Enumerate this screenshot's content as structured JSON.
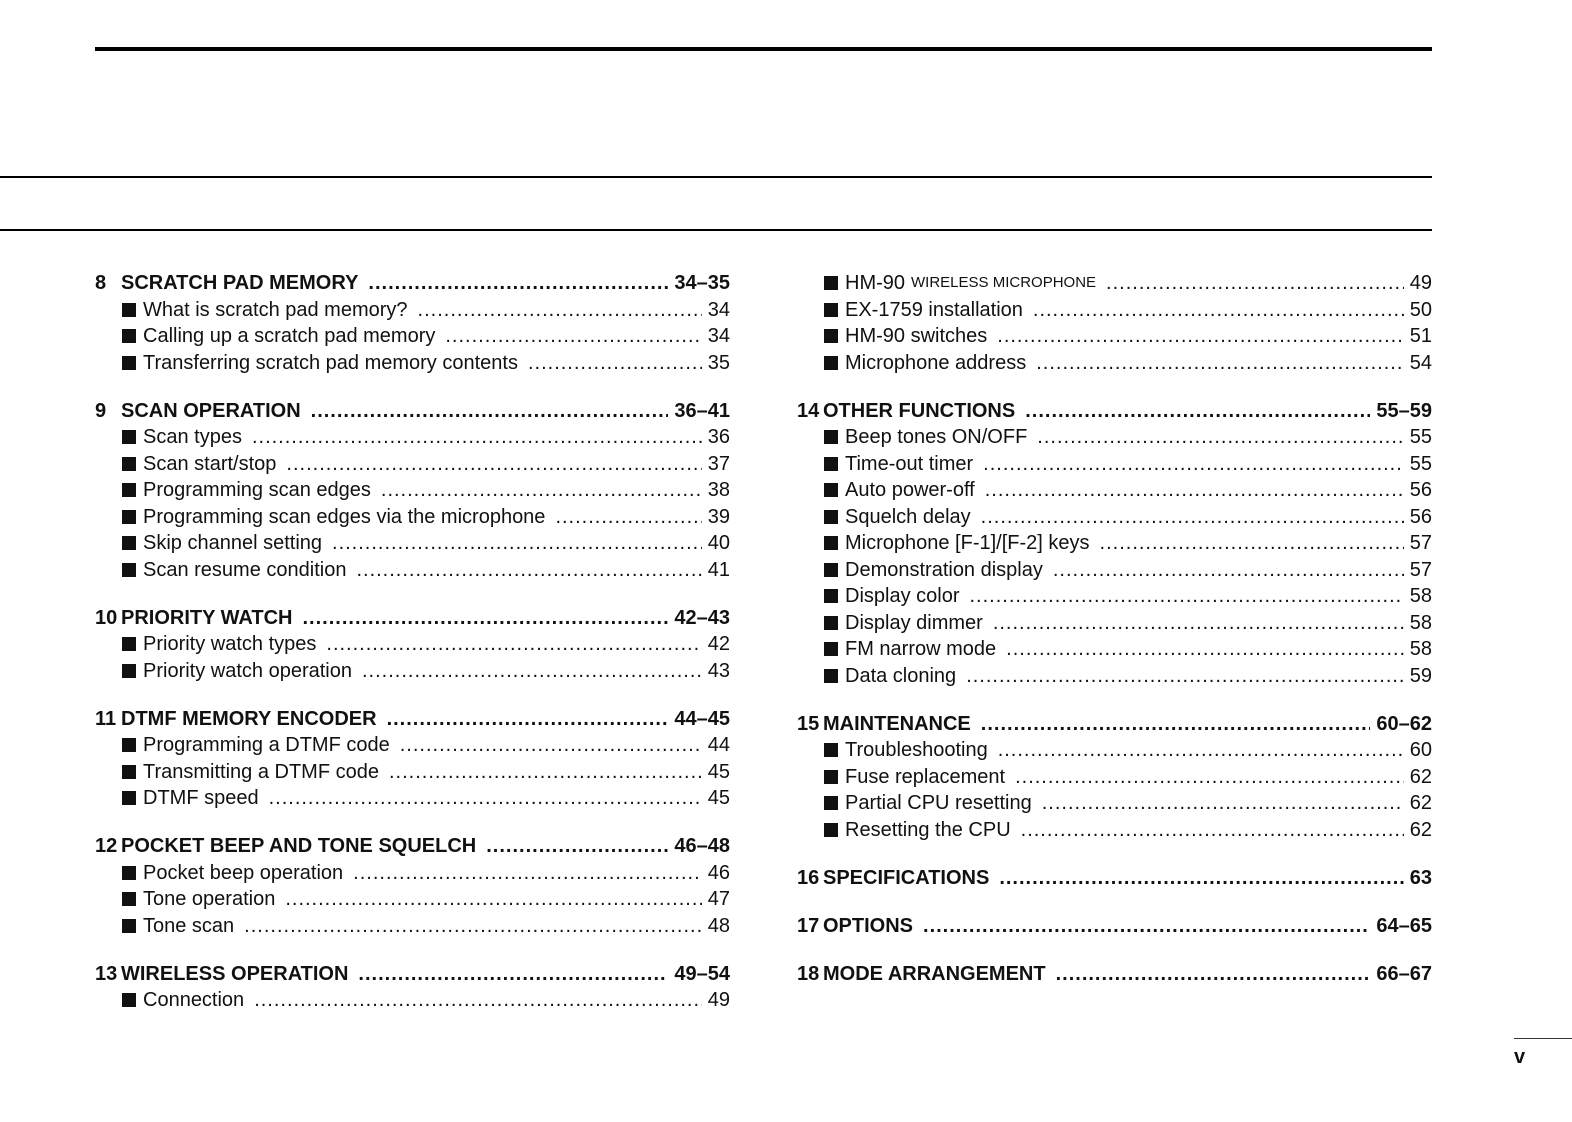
{
  "page_number": "v",
  "columns": [
    [
      {
        "type": "heading",
        "num": "8",
        "title": "SCRATCH PAD MEMORY",
        "page": "34–35"
      },
      {
        "type": "item",
        "title": "What is scratch pad memory?",
        "page": "34"
      },
      {
        "type": "item",
        "title": "Calling up a scratch pad memory",
        "page": "34"
      },
      {
        "type": "item",
        "title": "Transferring scratch pad memory contents",
        "page": "35"
      },
      {
        "type": "heading",
        "num": "9",
        "title": "SCAN OPERATION",
        "page": "36–41"
      },
      {
        "type": "item",
        "title": "Scan types",
        "page": "36"
      },
      {
        "type": "item",
        "title": "Scan start/stop",
        "page": "37"
      },
      {
        "type": "item",
        "title": "Programming scan edges",
        "page": "38"
      },
      {
        "type": "item",
        "title": "Programming scan edges via the microphone",
        "page": "39"
      },
      {
        "type": "item",
        "title": "Skip channel setting",
        "page": "40"
      },
      {
        "type": "item",
        "title": "Scan resume condition",
        "page": "41"
      },
      {
        "type": "heading",
        "num": "10",
        "title": "PRIORITY WATCH",
        "page": "42–43"
      },
      {
        "type": "item",
        "title": "Priority watch types",
        "page": "42"
      },
      {
        "type": "item",
        "title": "Priority watch operation",
        "page": "43"
      },
      {
        "type": "heading",
        "num": "11",
        "title": "DTMF MEMORY ENCODER",
        "page": "44–45"
      },
      {
        "type": "item",
        "title": "Programming a DTMF code",
        "page": "44"
      },
      {
        "type": "item",
        "title": "Transmitting a DTMF code",
        "page": "45"
      },
      {
        "type": "item",
        "title": "DTMF speed",
        "page": "45"
      },
      {
        "type": "heading",
        "num": "12",
        "title": "POCKET BEEP AND TONE SQUELCH",
        "page": "46–48"
      },
      {
        "type": "item",
        "title": "Pocket beep operation",
        "page": "46"
      },
      {
        "type": "item",
        "title": "Tone operation",
        "page": "47"
      },
      {
        "type": "item",
        "title": "Tone scan",
        "page": "48"
      },
      {
        "type": "heading",
        "num": "13",
        "title": "WIRELESS OPERATION",
        "page": "49–54"
      },
      {
        "type": "item",
        "title": "Connection",
        "page": "49"
      }
    ],
    [
      {
        "type": "item",
        "title": "HM-90",
        "title_small": "WIRELESS MICROPHONE",
        "page": "49"
      },
      {
        "type": "item",
        "title": "EX-1759 installation",
        "page": "50"
      },
      {
        "type": "item",
        "title": "HM-90 switches",
        "page": "51"
      },
      {
        "type": "item",
        "title": "Microphone address",
        "page": "54"
      },
      {
        "type": "heading",
        "num": "14",
        "title": "OTHER FUNCTIONS",
        "page": "55–59"
      },
      {
        "type": "item",
        "title": "Beep tones ON/OFF",
        "page": "55"
      },
      {
        "type": "item",
        "title": "Time-out timer",
        "page": "55"
      },
      {
        "type": "item",
        "title": "Auto power-off",
        "page": "56"
      },
      {
        "type": "item",
        "title": "Squelch delay",
        "page": "56"
      },
      {
        "type": "item",
        "title": "Microphone [F-1]/[F-2] keys",
        "page": "57"
      },
      {
        "type": "item",
        "title": "Demonstration display",
        "page": "57"
      },
      {
        "type": "item",
        "title": "Display color",
        "page": "58"
      },
      {
        "type": "item",
        "title": "Display dimmer",
        "page": "58"
      },
      {
        "type": "item",
        "title": "FM narrow mode",
        "page": "58"
      },
      {
        "type": "item",
        "title": "Data cloning",
        "page": "59"
      },
      {
        "type": "heading",
        "num": "15",
        "title": "MAINTENANCE",
        "page": "60–62"
      },
      {
        "type": "item",
        "title": "Troubleshooting",
        "page": "60"
      },
      {
        "type": "item",
        "title": "Fuse replacement",
        "page": "62"
      },
      {
        "type": "item",
        "title": "Partial CPU resetting",
        "page": "62"
      },
      {
        "type": "item",
        "title": "Resetting the CPU",
        "page": "62"
      },
      {
        "type": "heading",
        "num": "16",
        "title": "SPECIFICATIONS",
        "page": "63"
      },
      {
        "type": "heading",
        "num": "17",
        "title": "OPTIONS",
        "page": "64–65"
      },
      {
        "type": "heading",
        "num": "18",
        "title": "MODE ARRANGEMENT",
        "page": "66–67"
      }
    ]
  ]
}
